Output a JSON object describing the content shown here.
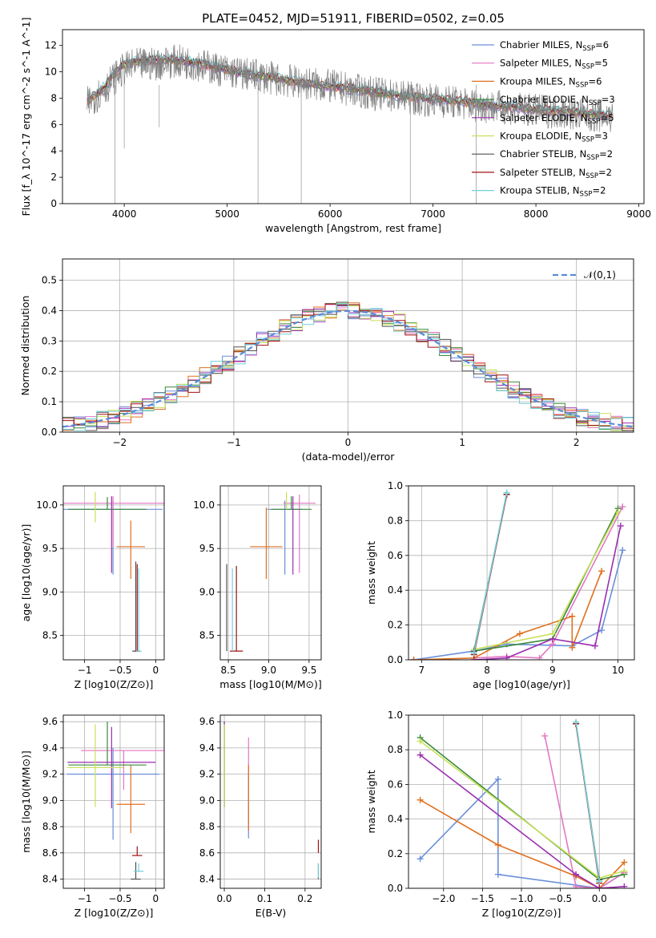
{
  "figure": {
    "title": "PLATE=0452, MJD=51911, FIBERID=0502, z=0.05"
  },
  "legend_models": [
    {
      "name": "Chabrier MILES, N",
      "sub": "SSP",
      "tail": "=6",
      "color": "#6a8fdb"
    },
    {
      "name": "Salpeter MILES, N",
      "sub": "SSP",
      "tail": "=5",
      "color": "#e377c2"
    },
    {
      "name": "Kroupa MILES, N",
      "sub": "SSP",
      "tail": "=6",
      "color": "#e07020"
    },
    {
      "name": "Chabrier ELODIE, N",
      "sub": "SSP",
      "tail": "=3",
      "color": "#3a8a3a"
    },
    {
      "name": "Salpeter ELODIE, N",
      "sub": "SSP",
      "tail": "=5",
      "color": "#9a2fb0"
    },
    {
      "name": "Kroupa ELODIE, N",
      "sub": "SSP",
      "tail": "=3",
      "color": "#c8e05a"
    },
    {
      "name": "Chabrier STELIB, N",
      "sub": "SSP",
      "tail": "=2",
      "color": "#505050"
    },
    {
      "name": "Salpeter STELIB, N",
      "sub": "SSP",
      "tail": "=2",
      "color": "#a01010"
    },
    {
      "name": "Kroupa STELIB, N",
      "sub": "SSP",
      "tail": "=2",
      "color": "#70d0d8"
    }
  ],
  "chart_data": [
    {
      "id": "spectrum",
      "type": "line",
      "title": "PLATE=0452, MJD=51911, FIBERID=0502, z=0.05",
      "xlabel": "wavelength [Angstrom, rest frame]",
      "ylabel": "Flux [f_λ 10^-17 erg cm^-2 s^-1 A^-1]",
      "xlim": [
        3400,
        9050
      ],
      "ylim": [
        0,
        13.2
      ],
      "xticks": [
        4000,
        5000,
        6000,
        7000,
        8000,
        9000
      ],
      "yticks": [
        0,
        2,
        4,
        6,
        8,
        10,
        12
      ],
      "grid": false,
      "legend_position": "top-right",
      "data_curve": [
        [
          3640,
          7.6
        ],
        [
          3700,
          8.0
        ],
        [
          3800,
          8.6
        ],
        [
          3900,
          9.5
        ],
        [
          4000,
          10.2
        ],
        [
          4100,
          10.5
        ],
        [
          4300,
          10.6
        ],
        [
          4500,
          10.8
        ],
        [
          4700,
          10.6
        ],
        [
          4900,
          10.2
        ],
        [
          5100,
          9.9
        ],
        [
          5300,
          9.7
        ],
        [
          5500,
          9.4
        ],
        [
          5700,
          9.2
        ],
        [
          5900,
          9.0
        ],
        [
          6100,
          8.8
        ],
        [
          6300,
          8.5
        ],
        [
          6500,
          8.3
        ],
        [
          6700,
          8.1
        ],
        [
          6900,
          7.9
        ],
        [
          7100,
          7.8
        ],
        [
          7300,
          7.6
        ],
        [
          7500,
          7.4
        ],
        [
          7700,
          7.3
        ],
        [
          7900,
          7.1
        ],
        [
          8100,
          7.0
        ],
        [
          8300,
          6.9
        ],
        [
          8500,
          6.7
        ],
        [
          8750,
          6.6
        ]
      ],
      "model_curve": [
        [
          3640,
          7.8
        ],
        [
          3700,
          8.1
        ],
        [
          3800,
          8.8
        ],
        [
          3900,
          9.8
        ],
        [
          4000,
          10.6
        ],
        [
          4100,
          10.8
        ],
        [
          4300,
          10.9
        ],
        [
          4500,
          10.9
        ],
        [
          4700,
          10.7
        ],
        [
          4900,
          10.3
        ],
        [
          5100,
          10.0
        ],
        [
          5300,
          9.7
        ],
        [
          5500,
          9.5
        ],
        [
          5700,
          9.2
        ],
        [
          5900,
          9.0
        ],
        [
          6100,
          8.8
        ],
        [
          6300,
          8.6
        ],
        [
          6500,
          8.4
        ],
        [
          6700,
          8.2
        ],
        [
          6900,
          8.0
        ],
        [
          7100,
          7.9
        ],
        [
          7300,
          7.7
        ],
        [
          7500,
          7.5
        ],
        [
          7700,
          7.4
        ],
        [
          7900,
          7.2
        ],
        [
          8100,
          7.1
        ],
        [
          8300,
          7.0
        ],
        [
          8500,
          6.8
        ],
        [
          8750,
          6.7
        ]
      ]
    },
    {
      "id": "residuals",
      "type": "line",
      "xlabel": "(data-model)/error",
      "ylabel": "Normed distribution",
      "xlim": [
        -2.5,
        2.5
      ],
      "ylim": [
        0,
        0.57
      ],
      "xticks": [
        -2,
        -1,
        0,
        1,
        2
      ],
      "yticks": [
        0.0,
        0.1,
        0.2,
        0.3,
        0.4,
        0.5
      ],
      "grid": true,
      "legend_position": "top-right",
      "gaussian_label": "𝒩(0,1)",
      "gaussian_color": "#5b8bd8",
      "hist_peak_mean": 0.41
    },
    {
      "id": "age-vs-z",
      "type": "scatter",
      "xlabel": "Z [log10(Z/Z⊙)]",
      "ylabel": "age [log10(age/yr)]",
      "xlim": [
        -1.3,
        0.12
      ],
      "ylim": [
        8.22,
        10.22
      ],
      "xticks": [
        -1,
        -0.5,
        0
      ],
      "yticks": [
        8.5,
        9.0,
        9.5,
        10.0
      ],
      "grid": true,
      "points": [
        {
          "x": -0.6,
          "y": 9.95,
          "xerr": 0.7,
          "yerr_lo": 0.75,
          "yerr_hi": 0.1
        },
        {
          "x": -0.6,
          "y": 10.02,
          "xerr": 0.75,
          "yerr_lo": 0.5,
          "yerr_hi": 0.08
        },
        {
          "x": -0.35,
          "y": 9.52,
          "xerr": 0.2,
          "yerr_lo": 0.37,
          "yerr_hi": 0.3
        },
        {
          "x": -0.68,
          "y": 9.95,
          "xerr": 0.55,
          "yerr_lo": 0.0,
          "yerr_hi": 0.14
        },
        {
          "x": -0.62,
          "y": 9.6,
          "xerr": 0.0,
          "yerr_lo": 0.38,
          "yerr_hi": 0.5
        },
        {
          "x": -0.85,
          "y": 9.95,
          "xerr": 0.0,
          "yerr_lo": 0.15,
          "yerr_hi": 0.2
        },
        {
          "x": -0.28,
          "y": 8.32,
          "xerr": 0.05,
          "yerr_lo": 0.0,
          "yerr_hi": 1.03
        },
        {
          "x": -0.26,
          "y": 8.32,
          "xerr": 0.04,
          "yerr_lo": 0.0,
          "yerr_hi": 1.0
        },
        {
          "x": -0.24,
          "y": 8.32,
          "xerr": 0.04,
          "yerr_lo": 0.0,
          "yerr_hi": 0.95
        }
      ]
    },
    {
      "id": "age-vs-mass",
      "type": "scatter",
      "xlabel": "mass [log10(M/M⊙)]",
      "ylabel": "",
      "xlim": [
        8.4,
        9.65
      ],
      "ylim": [
        8.22,
        10.22
      ],
      "xticks": [
        8.5,
        9.0,
        9.5
      ],
      "yticks": [
        8.5,
        9.0,
        9.5,
        10.0
      ],
      "grid": true,
      "points": [
        {
          "x": 9.2,
          "y": 9.95,
          "xerr": 0.22,
          "yerr_lo": 0.75,
          "yerr_hi": 0.1
        },
        {
          "x": 9.38,
          "y": 10.02,
          "xerr": 0.2,
          "yerr_lo": 0.8,
          "yerr_hi": 0.1
        },
        {
          "x": 8.97,
          "y": 9.52,
          "xerr": 0.2,
          "yerr_lo": 0.37,
          "yerr_hi": 0.45
        },
        {
          "x": 9.28,
          "y": 9.95,
          "xerr": 0.25,
          "yerr_lo": 0.0,
          "yerr_hi": 0.15
        },
        {
          "x": 9.3,
          "y": 9.6,
          "xerr": 0.0,
          "yerr_lo": 0.4,
          "yerr_hi": 0.5
        },
        {
          "x": 9.22,
          "y": 9.95,
          "xerr": 0.0,
          "yerr_lo": 0.0,
          "yerr_hi": 0.2
        },
        {
          "x": 8.48,
          "y": 8.32,
          "xerr": 0.0,
          "yerr_lo": 0.0,
          "yerr_hi": 1.0
        },
        {
          "x": 8.6,
          "y": 8.32,
          "xerr": 0.08,
          "yerr_lo": 0.0,
          "yerr_hi": 0.98
        },
        {
          "x": 8.55,
          "y": 8.32,
          "xerr": 0.0,
          "yerr_lo": 0.0,
          "yerr_hi": 0.95
        }
      ]
    },
    {
      "id": "massweight-vs-age",
      "type": "line",
      "xlabel": "age [log10(age/yr)]",
      "ylabel": "mass weight",
      "xlim": [
        6.8,
        10.25
      ],
      "ylim": [
        0,
        1.0
      ],
      "xticks": [
        7,
        8,
        9,
        10
      ],
      "yticks": [
        0.0,
        0.2,
        0.4,
        0.6,
        0.8,
        1.0
      ],
      "grid": true,
      "series_xy": [
        [
          [
            6.88,
            0.0
          ],
          [
            7.8,
            0.05
          ],
          [
            8.3,
            0.09
          ],
          [
            9.3,
            0.08
          ],
          [
            9.75,
            0.17
          ],
          [
            10.07,
            0.63
          ]
        ],
        [
          [
            7.8,
            0.01
          ],
          [
            8.3,
            0.02
          ],
          [
            8.8,
            0.01
          ],
          [
            9.0,
            0.09
          ],
          [
            10.07,
            0.88
          ]
        ],
        [
          [
            6.88,
            0.0
          ],
          [
            7.8,
            0.01
          ],
          [
            8.5,
            0.15
          ],
          [
            9.3,
            0.25
          ],
          [
            9.3,
            0.07
          ],
          [
            9.75,
            0.51
          ]
        ],
        [
          [
            7.8,
            0.05
          ],
          [
            9.0,
            0.12
          ],
          [
            10.0,
            0.87
          ]
        ],
        [
          [
            7.8,
            0.0
          ],
          [
            8.3,
            0.01
          ],
          [
            9.0,
            0.12
          ],
          [
            9.65,
            0.08
          ],
          [
            10.04,
            0.77
          ]
        ],
        [
          [
            7.8,
            0.06
          ],
          [
            9.0,
            0.15
          ],
          [
            10.0,
            0.85
          ]
        ],
        [
          [
            7.8,
            0.05
          ],
          [
            8.3,
            0.95
          ]
        ],
        [
          [
            7.8,
            0.03
          ],
          [
            8.3,
            0.95
          ]
        ],
        [
          [
            7.8,
            0.04
          ],
          [
            8.3,
            0.96
          ]
        ]
      ]
    },
    {
      "id": "mass-vs-z",
      "type": "scatter",
      "xlabel": "Z [log10(Z/Z⊙)]",
      "ylabel": "mass [log10(M/M⊙)]",
      "xlim": [
        -1.3,
        0.12
      ],
      "ylim": [
        8.33,
        9.65
      ],
      "xticks": [
        -1,
        -0.5,
        0
      ],
      "yticks": [
        8.4,
        8.6,
        8.8,
        9.0,
        9.2,
        9.4,
        9.6
      ],
      "grid": true,
      "points": [
        {
          "x": -0.6,
          "y": 9.2,
          "xerr": 0.65,
          "yerr_lo": 0.5,
          "yerr_hi": 0.2
        },
        {
          "x": -0.45,
          "y": 9.38,
          "xerr": 0.6,
          "yerr_lo": 0.3,
          "yerr_hi": 0.0
        },
        {
          "x": -0.35,
          "y": 8.97,
          "xerr": 0.2,
          "yerr_lo": 0.22,
          "yerr_hi": 0.3
        },
        {
          "x": -0.68,
          "y": 9.27,
          "xerr": 0.55,
          "yerr_lo": 0.0,
          "yerr_hi": 0.33
        },
        {
          "x": -0.62,
          "y": 9.29,
          "xerr": 0.62,
          "yerr_lo": 0.35,
          "yerr_hi": 0.27
        },
        {
          "x": -0.85,
          "y": 9.25,
          "xerr": 0.4,
          "yerr_lo": 0.3,
          "yerr_hi": 0.33
        },
        {
          "x": -0.28,
          "y": 8.4,
          "xerr": 0.07,
          "yerr_lo": 0.0,
          "yerr_hi": 0.13
        },
        {
          "x": -0.26,
          "y": 8.58,
          "xerr": 0.07,
          "yerr_lo": 0.0,
          "yerr_hi": 0.07
        },
        {
          "x": -0.24,
          "y": 8.46,
          "xerr": 0.07,
          "yerr_lo": 0.0,
          "yerr_hi": 0.06
        }
      ]
    },
    {
      "id": "mass-vs-ebv",
      "type": "scatter",
      "xlabel": "E(B-V)",
      "ylabel": "",
      "xlim": [
        -0.01,
        0.24
      ],
      "ylim": [
        8.33,
        9.65
      ],
      "xticks": [
        0.0,
        0.1,
        0.2
      ],
      "yticks": [
        8.4,
        8.6,
        8.8,
        9.0,
        9.2,
        9.4,
        9.6
      ],
      "grid": true,
      "points": [
        {
          "x": 0.06,
          "y": 9.0,
          "yerr_lo": 0.29,
          "yerr_hi": 0.2
        },
        {
          "x": 0.06,
          "y": 9.3,
          "yerr_lo": 0.1,
          "yerr_hi": 0.18
        },
        {
          "x": 0.06,
          "y": 8.97,
          "yerr_lo": 0.2,
          "yerr_hi": 0.3
        },
        {
          "x": 0.0,
          "y": 9.25,
          "yerr_lo": 0.3,
          "yerr_hi": 0.35
        },
        {
          "x": 0.0,
          "y": 9.3,
          "yerr_lo": 0.35,
          "yerr_hi": 0.3
        },
        {
          "x": 0.0,
          "y": 9.25,
          "yerr_lo": 0.3,
          "yerr_hi": 0.33
        },
        {
          "x": 0.233,
          "y": 8.45,
          "yerr_lo": 0.05,
          "yerr_hi": 0.07
        },
        {
          "x": 0.233,
          "y": 8.6,
          "yerr_lo": 0.0,
          "yerr_hi": 0.1
        },
        {
          "x": 0.233,
          "y": 8.46,
          "yerr_lo": 0.05,
          "yerr_hi": 0.06
        }
      ]
    },
    {
      "id": "massweight-vs-z",
      "type": "line",
      "xlabel": "Z [log10(Z/Z⊙)]",
      "ylabel": "mass weight",
      "xlim": [
        -2.45,
        0.45
      ],
      "ylim": [
        0,
        1.0
      ],
      "xticks": [
        -2.0,
        -1.5,
        -1.0,
        -0.5,
        0.0
      ],
      "yticks": [
        0.0,
        0.2,
        0.4,
        0.6,
        0.8,
        1.0
      ],
      "grid": true,
      "series_xy": [
        [
          [
            -2.3,
            0.17
          ],
          [
            -1.3,
            0.63
          ],
          [
            -1.3,
            0.08
          ],
          [
            0.0,
            0.0
          ],
          [
            0.32,
            0.09
          ]
        ],
        [
          [
            -0.7,
            0.88
          ],
          [
            -0.3,
            0.01
          ],
          [
            0.0,
            0.0
          ],
          [
            0.32,
            0.09
          ]
        ],
        [
          [
            -2.3,
            0.51
          ],
          [
            -1.3,
            0.25
          ],
          [
            -0.3,
            0.07
          ],
          [
            0.0,
            0.0
          ],
          [
            0.32,
            0.15
          ]
        ],
        [
          [
            -2.3,
            0.87
          ],
          [
            0.0,
            0.05
          ],
          [
            0.32,
            0.08
          ]
        ],
        [
          [
            -2.3,
            0.77
          ],
          [
            -0.3,
            0.08
          ],
          [
            0.0,
            0.0
          ],
          [
            0.32,
            0.01
          ]
        ],
        [
          [
            -2.3,
            0.85
          ],
          [
            0.0,
            0.06
          ],
          [
            0.32,
            0.1
          ]
        ],
        [
          [
            -0.3,
            0.95
          ],
          [
            0.0,
            0.05
          ]
        ],
        [
          [
            -0.3,
            0.95
          ],
          [
            0.0,
            0.03
          ]
        ],
        [
          [
            -0.3,
            0.96
          ],
          [
            0.0,
            0.04
          ]
        ]
      ]
    }
  ]
}
